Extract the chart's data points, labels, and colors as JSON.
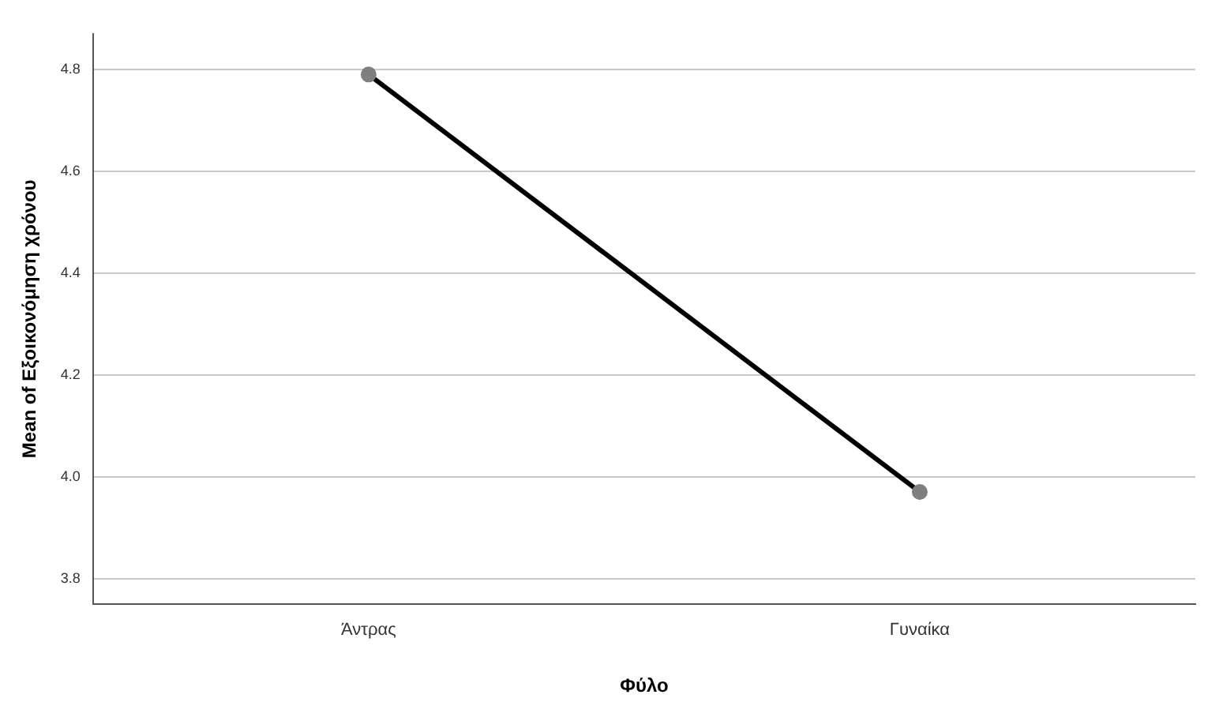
{
  "chart_data": {
    "type": "line",
    "xlabel": "Φύλο",
    "ylabel": "Mean of Εξοικονόμηση χρόνου",
    "categories": [
      "Άντρας",
      "Γυναίκα"
    ],
    "series": [
      {
        "color": "#000000",
        "values": [
          4.79,
          3.97
        ]
      }
    ],
    "ylim": [
      3.75,
      4.87
    ],
    "yticks": [
      3.8,
      {
        "value": 4,
        "label": "4.0"
      },
      4.2,
      4.4,
      4.6,
      4.8
    ],
    "grid": "y",
    "marker": "circle",
    "line_style": "solid",
    "legend": false
  }
}
